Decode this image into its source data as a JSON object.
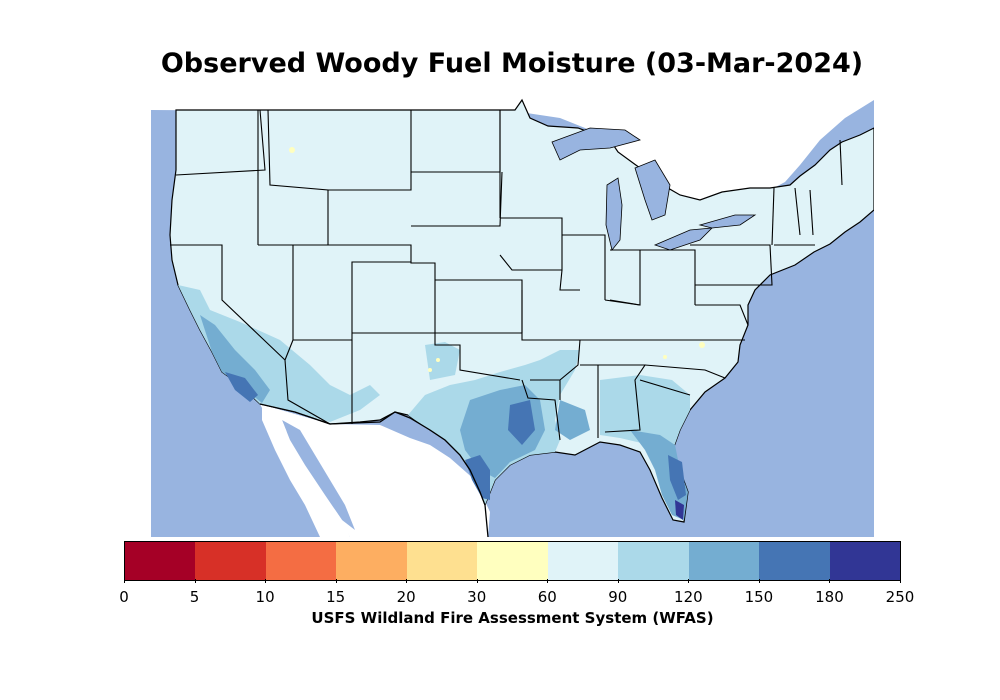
{
  "title": "Observed Woody Fuel Moisture (03-Mar-2024)",
  "colorbar": {
    "label": "USFS Wildland Fire Assessment System (WFAS)",
    "ticks": [
      "0",
      "5",
      "10",
      "15",
      "20",
      "30",
      "60",
      "90",
      "120",
      "150",
      "180",
      "250"
    ],
    "colors": [
      "#a50026",
      "#d73027",
      "#f46d43",
      "#fdae61",
      "#fee090",
      "#ffffbf",
      "#e0f3f8",
      "#abd9e9",
      "#74add1",
      "#4575b4",
      "#313695"
    ]
  },
  "map_colors": {
    "water": "#98b4e0",
    "land_outside": "#ffffff",
    "base_fill": "#e0f3f8",
    "band_90_120": "#abd9e9",
    "band_120_150": "#74add1",
    "band_150_180": "#4575b4",
    "band_180_250": "#313695",
    "band_30_60": "#ffffbf",
    "borders": "#000000"
  }
}
